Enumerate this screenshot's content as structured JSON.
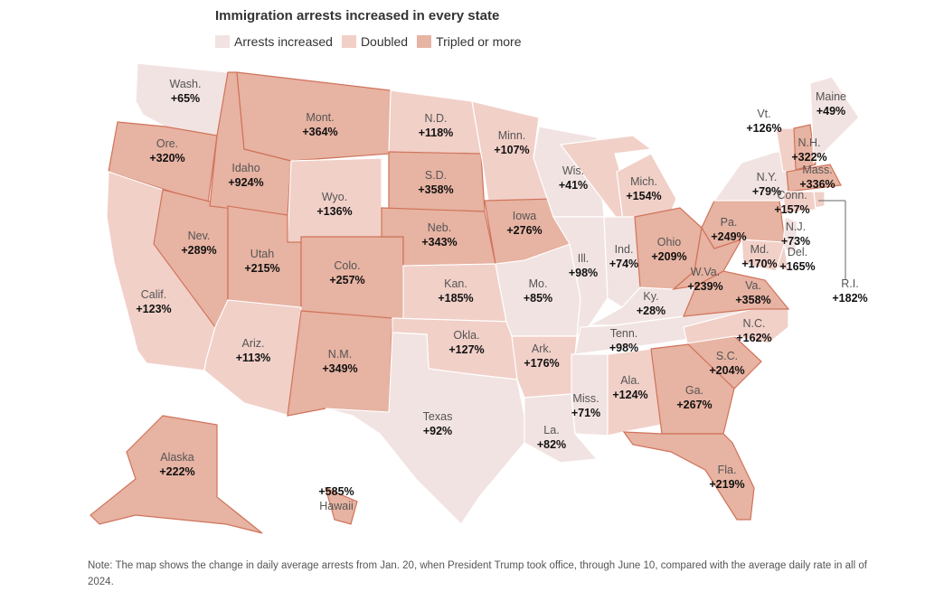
{
  "title": "Immigration arrests increased in every state",
  "legend": [
    {
      "label": "Arrests increased",
      "color": "#f1e3e1"
    },
    {
      "label": "Doubled",
      "color": "#f1d0c8"
    },
    {
      "label": "Tripled or more",
      "color": "#e7b3a2"
    }
  ],
  "note": "Note: The map shows the change in daily average arrests from Jan. 20, when President Trump took office, through June 10, compared with the average daily rate in all of 2024.",
  "states": [
    {
      "name": "Wash.",
      "value": "+65%",
      "tier": 1
    },
    {
      "name": "Ore.",
      "value": "+320%",
      "tier": 3
    },
    {
      "name": "Calif.",
      "value": "+123%",
      "tier": 2
    },
    {
      "name": "Nev.",
      "value": "+289%",
      "tier": 3
    },
    {
      "name": "Idaho",
      "value": "+924%",
      "tier": 3
    },
    {
      "name": "Mont.",
      "value": "+364%",
      "tier": 3
    },
    {
      "name": "Wyo.",
      "value": "+136%",
      "tier": 2
    },
    {
      "name": "Utah",
      "value": "+215%",
      "tier": 3
    },
    {
      "name": "Colo.",
      "value": "+257%",
      "tier": 3
    },
    {
      "name": "Ariz.",
      "value": "+113%",
      "tier": 2
    },
    {
      "name": "N.M.",
      "value": "+349%",
      "tier": 3
    },
    {
      "name": "N.D.",
      "value": "+118%",
      "tier": 2
    },
    {
      "name": "S.D.",
      "value": "+358%",
      "tier": 3
    },
    {
      "name": "Neb.",
      "value": "+343%",
      "tier": 3
    },
    {
      "name": "Kan.",
      "value": "+185%",
      "tier": 2
    },
    {
      "name": "Okla.",
      "value": "+127%",
      "tier": 2
    },
    {
      "name": "Texas",
      "value": "+92%",
      "tier": 1
    },
    {
      "name": "Minn.",
      "value": "+107%",
      "tier": 2
    },
    {
      "name": "Iowa",
      "value": "+276%",
      "tier": 3
    },
    {
      "name": "Mo.",
      "value": "+85%",
      "tier": 1
    },
    {
      "name": "Ark.",
      "value": "+176%",
      "tier": 2
    },
    {
      "name": "La.",
      "value": "+82%",
      "tier": 1
    },
    {
      "name": "Wis.",
      "value": "+41%",
      "tier": 1
    },
    {
      "name": "Ill.",
      "value": "+98%",
      "tier": 1
    },
    {
      "name": "Mich.",
      "value": "+154%",
      "tier": 2
    },
    {
      "name": "Ind.",
      "value": "+74%",
      "tier": 1
    },
    {
      "name": "Ohio",
      "value": "+209%",
      "tier": 3
    },
    {
      "name": "Ky.",
      "value": "+28%",
      "tier": 1
    },
    {
      "name": "Tenn.",
      "value": "+98%",
      "tier": 1
    },
    {
      "name": "Miss.",
      "value": "+71%",
      "tier": 1
    },
    {
      "name": "Ala.",
      "value": "+124%",
      "tier": 2
    },
    {
      "name": "Ga.",
      "value": "+267%",
      "tier": 3
    },
    {
      "name": "Fla.",
      "value": "+219%",
      "tier": 3
    },
    {
      "name": "S.C.",
      "value": "+204%",
      "tier": 3
    },
    {
      "name": "N.C.",
      "value": "+162%",
      "tier": 2
    },
    {
      "name": "Va.",
      "value": "+358%",
      "tier": 3
    },
    {
      "name": "W.Va.",
      "value": "+239%",
      "tier": 3
    },
    {
      "name": "Pa.",
      "value": "+249%",
      "tier": 3
    },
    {
      "name": "N.Y.",
      "value": "+79%",
      "tier": 1
    },
    {
      "name": "Vt.",
      "value": "+126%",
      "tier": 2
    },
    {
      "name": "N.H.",
      "value": "+322%",
      "tier": 3
    },
    {
      "name": "Maine",
      "value": "+49%",
      "tier": 1
    },
    {
      "name": "Mass.",
      "value": "+336%",
      "tier": 3
    },
    {
      "name": "Conn.",
      "value": "+157%",
      "tier": 2
    },
    {
      "name": "R.I.",
      "value": "+182%",
      "tier": 2
    },
    {
      "name": "N.J.",
      "value": "+73%",
      "tier": 1
    },
    {
      "name": "Del.",
      "value": "+165%",
      "tier": 2
    },
    {
      "name": "Md.",
      "value": "+170%",
      "tier": 2
    },
    {
      "name": "Alaska",
      "value": "+222%",
      "tier": 3
    },
    {
      "name": "Hawaii",
      "value": "+585%",
      "tier": 3
    }
  ]
}
